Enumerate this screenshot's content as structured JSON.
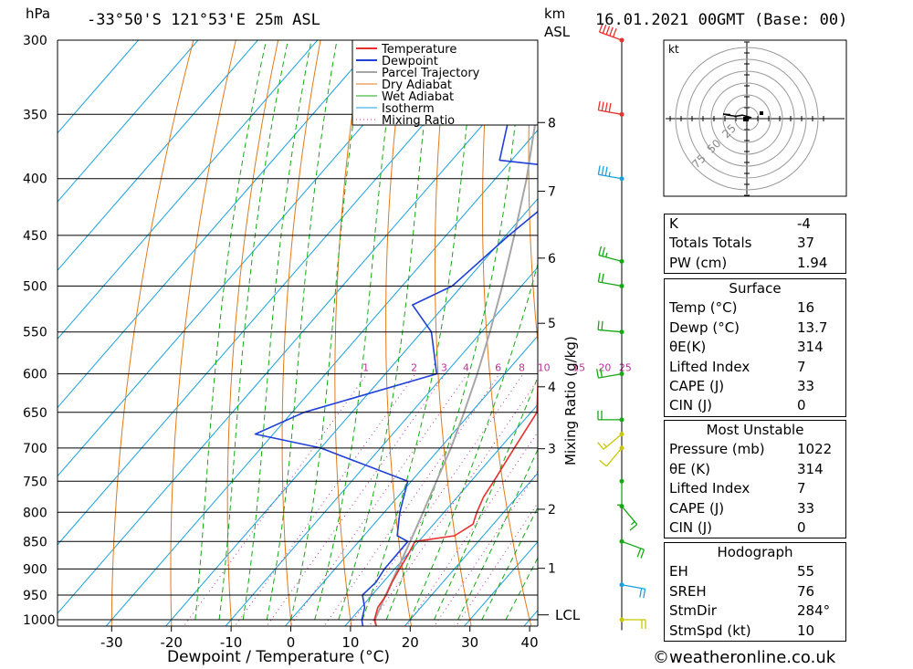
{
  "header": {
    "hpa_unit": "hPa",
    "location": "-33°50'S 121°53'E 25m ASL",
    "km_unit": "km",
    "asl_unit": "ASL",
    "datetime": "16.01.2021 00GMT (Base: 00)"
  },
  "chart_data": {
    "type": "skew-t",
    "xlabel": "Dewpoint / Temperature (°C)",
    "ylabel_right": "Mixing Ratio (g/kg)",
    "pressure_levels": [
      300,
      350,
      400,
      450,
      500,
      550,
      600,
      650,
      700,
      750,
      800,
      850,
      900,
      950,
      1000
    ],
    "temperature_ticks": [
      -30,
      -20,
      -10,
      0,
      10,
      20,
      30,
      40
    ],
    "km_levels": [
      1,
      2,
      3,
      4,
      5,
      6,
      7,
      8
    ],
    "lcl_label": "LCL",
    "mixing_ratio_labels": [
      "1",
      "2",
      "3",
      "4",
      "6",
      "8",
      "10",
      "15",
      "20",
      "25"
    ],
    "legend": [
      "Temperature",
      "Dewpoint",
      "Parcel Trajectory",
      "Dry Adiabat",
      "Wet Adiabat",
      "Isotherm",
      "Mixing Ratio"
    ],
    "colors": {
      "temperature": "#e8302f",
      "dewpoint": "#2040d8",
      "parcel": "#a6a6a6",
      "dry_adiabat": "#e07a1a",
      "wet_adiabat": "#15a815",
      "isotherm": "#1aa0e0",
      "mixing_ratio": "#c0309c"
    },
    "temperature_profile": [
      [
        1022,
        16
      ],
      [
        1000,
        14
      ],
      [
        975,
        12.8
      ],
      [
        950,
        12.4
      ],
      [
        925,
        11.5
      ],
      [
        900,
        10.8
      ],
      [
        875,
        10.2
      ],
      [
        850,
        9.4
      ],
      [
        840,
        15.2
      ],
      [
        820,
        16.6
      ],
      [
        800,
        15.5
      ],
      [
        775,
        14.4
      ],
      [
        750,
        13.8
      ],
      [
        700,
        12.4
      ],
      [
        650,
        11
      ],
      [
        600,
        5.6
      ],
      [
        550,
        0.2
      ],
      [
        500,
        -5.4
      ],
      [
        450,
        -11.8
      ],
      [
        400,
        -19.4
      ],
      [
        375,
        -23.5
      ],
      [
        350,
        -28.2
      ],
      [
        340,
        -28.2
      ],
      [
        300,
        -37.8
      ]
    ],
    "dewpoint_profile": [
      [
        1022,
        13.7
      ],
      [
        1000,
        11.9
      ],
      [
        975,
        10.6
      ],
      [
        950,
        8.4
      ],
      [
        925,
        8.8
      ],
      [
        900,
        8.3
      ],
      [
        850,
        8.2
      ],
      [
        840,
        5.6
      ],
      [
        800,
        2.6
      ],
      [
        750,
        -0.6
      ],
      [
        700,
        -20
      ],
      [
        680,
        -33
      ],
      [
        650,
        -28
      ],
      [
        600,
        -11.4
      ],
      [
        550,
        -18.4
      ],
      [
        520,
        -25.5
      ],
      [
        500,
        -21.6
      ],
      [
        450,
        -19.5
      ],
      [
        420,
        -17.6
      ],
      [
        400,
        -21.7
      ],
      [
        390,
        -21.6
      ],
      [
        385,
        -32
      ],
      [
        350,
        -37
      ],
      [
        340,
        -46
      ],
      [
        300,
        -65
      ]
    ],
    "parcel_profile": [
      [
        1022,
        16
      ],
      [
        1000,
        14.1
      ],
      [
        950,
        12.3
      ],
      [
        900,
        10.5
      ],
      [
        850,
        8.6
      ],
      [
        800,
        6.5
      ],
      [
        750,
        4.2
      ],
      [
        700,
        1.8
      ],
      [
        650,
        -1.2
      ],
      [
        600,
        -4.6
      ],
      [
        550,
        -8.6
      ],
      [
        500,
        -13.2
      ],
      [
        450,
        -18.6
      ],
      [
        400,
        -24.8
      ],
      [
        350,
        -32.5
      ],
      [
        310,
        -39.5
      ]
    ],
    "wind_barbs": [
      {
        "p": 300,
        "dir": 290,
        "kt": 50
      },
      {
        "p": 350,
        "dir": 280,
        "kt": 40
      },
      {
        "p": 400,
        "dir": 280,
        "kt": 35
      },
      {
        "p": 475,
        "dir": 285,
        "kt": 25
      },
      {
        "p": 500,
        "dir": 280,
        "kt": 20
      },
      {
        "p": 550,
        "dir": 275,
        "kt": 20
      },
      {
        "p": 600,
        "dir": 260,
        "kt": 20
      },
      {
        "p": 660,
        "dir": 270,
        "kt": 20
      },
      {
        "p": 680,
        "dir": 230,
        "kt": 15
      },
      {
        "p": 700,
        "dir": 220,
        "kt": 10
      },
      {
        "p": 750,
        "dir": 180,
        "kt": 5
      },
      {
        "p": 790,
        "dir": 140,
        "kt": 15
      },
      {
        "p": 850,
        "dir": 110,
        "kt": 20
      },
      {
        "p": 930,
        "dir": 100,
        "kt": 20
      },
      {
        "p": 1000,
        "dir": 90,
        "kt": 20
      }
    ],
    "hodograph": {
      "unit": "kt",
      "ring_labels": [
        "25",
        "50",
        "75"
      ],
      "points": [
        [
          0.2,
          1.2
        ],
        [
          0.4,
          1.8
        ],
        [
          -0.5,
          2.6
        ],
        [
          -1.2,
          2.2
        ],
        [
          -2.0,
          2.6
        ],
        [
          -2.6,
          3.0
        ],
        [
          -1.8,
          2.8
        ]
      ]
    }
  },
  "indices": {
    "k_label": "K",
    "k": "-4",
    "tt_label": "Totals Totals",
    "tt": "37",
    "pw_label": "PW (cm)",
    "pw": "1.94"
  },
  "surface": {
    "title": "Surface",
    "temp_label": "Temp (°C)",
    "temp": "16",
    "dewp_label": "Dewp (°C)",
    "dewp": "13.7",
    "theta_e_label": "θE(K)",
    "theta_e": "314",
    "li_label": "Lifted Index",
    "li": "7",
    "cape_label": "CAPE (J)",
    "cape": "33",
    "cin_label": "CIN (J)",
    "cin": "0"
  },
  "most_unstable": {
    "title": "Most Unstable",
    "pressure_label": "Pressure (mb)",
    "pressure": "1022",
    "theta_e_label": "θE (K)",
    "theta_e": "314",
    "li_label": "Lifted Index",
    "li": "7",
    "cape_label": "CAPE (J)",
    "cape": "33",
    "cin_label": "CIN (J)",
    "cin": "0"
  },
  "hodograph_params": {
    "title": "Hodograph",
    "eh_label": "EH",
    "eh": "55",
    "sreh_label": "SREH",
    "sreh": "76",
    "stmdir_label": "StmDir",
    "stmdir": "284°",
    "stmspd_label": "StmSpd (kt)",
    "stmspd": "10"
  },
  "footer": {
    "copyright": "©weatheronline.co.uk"
  }
}
